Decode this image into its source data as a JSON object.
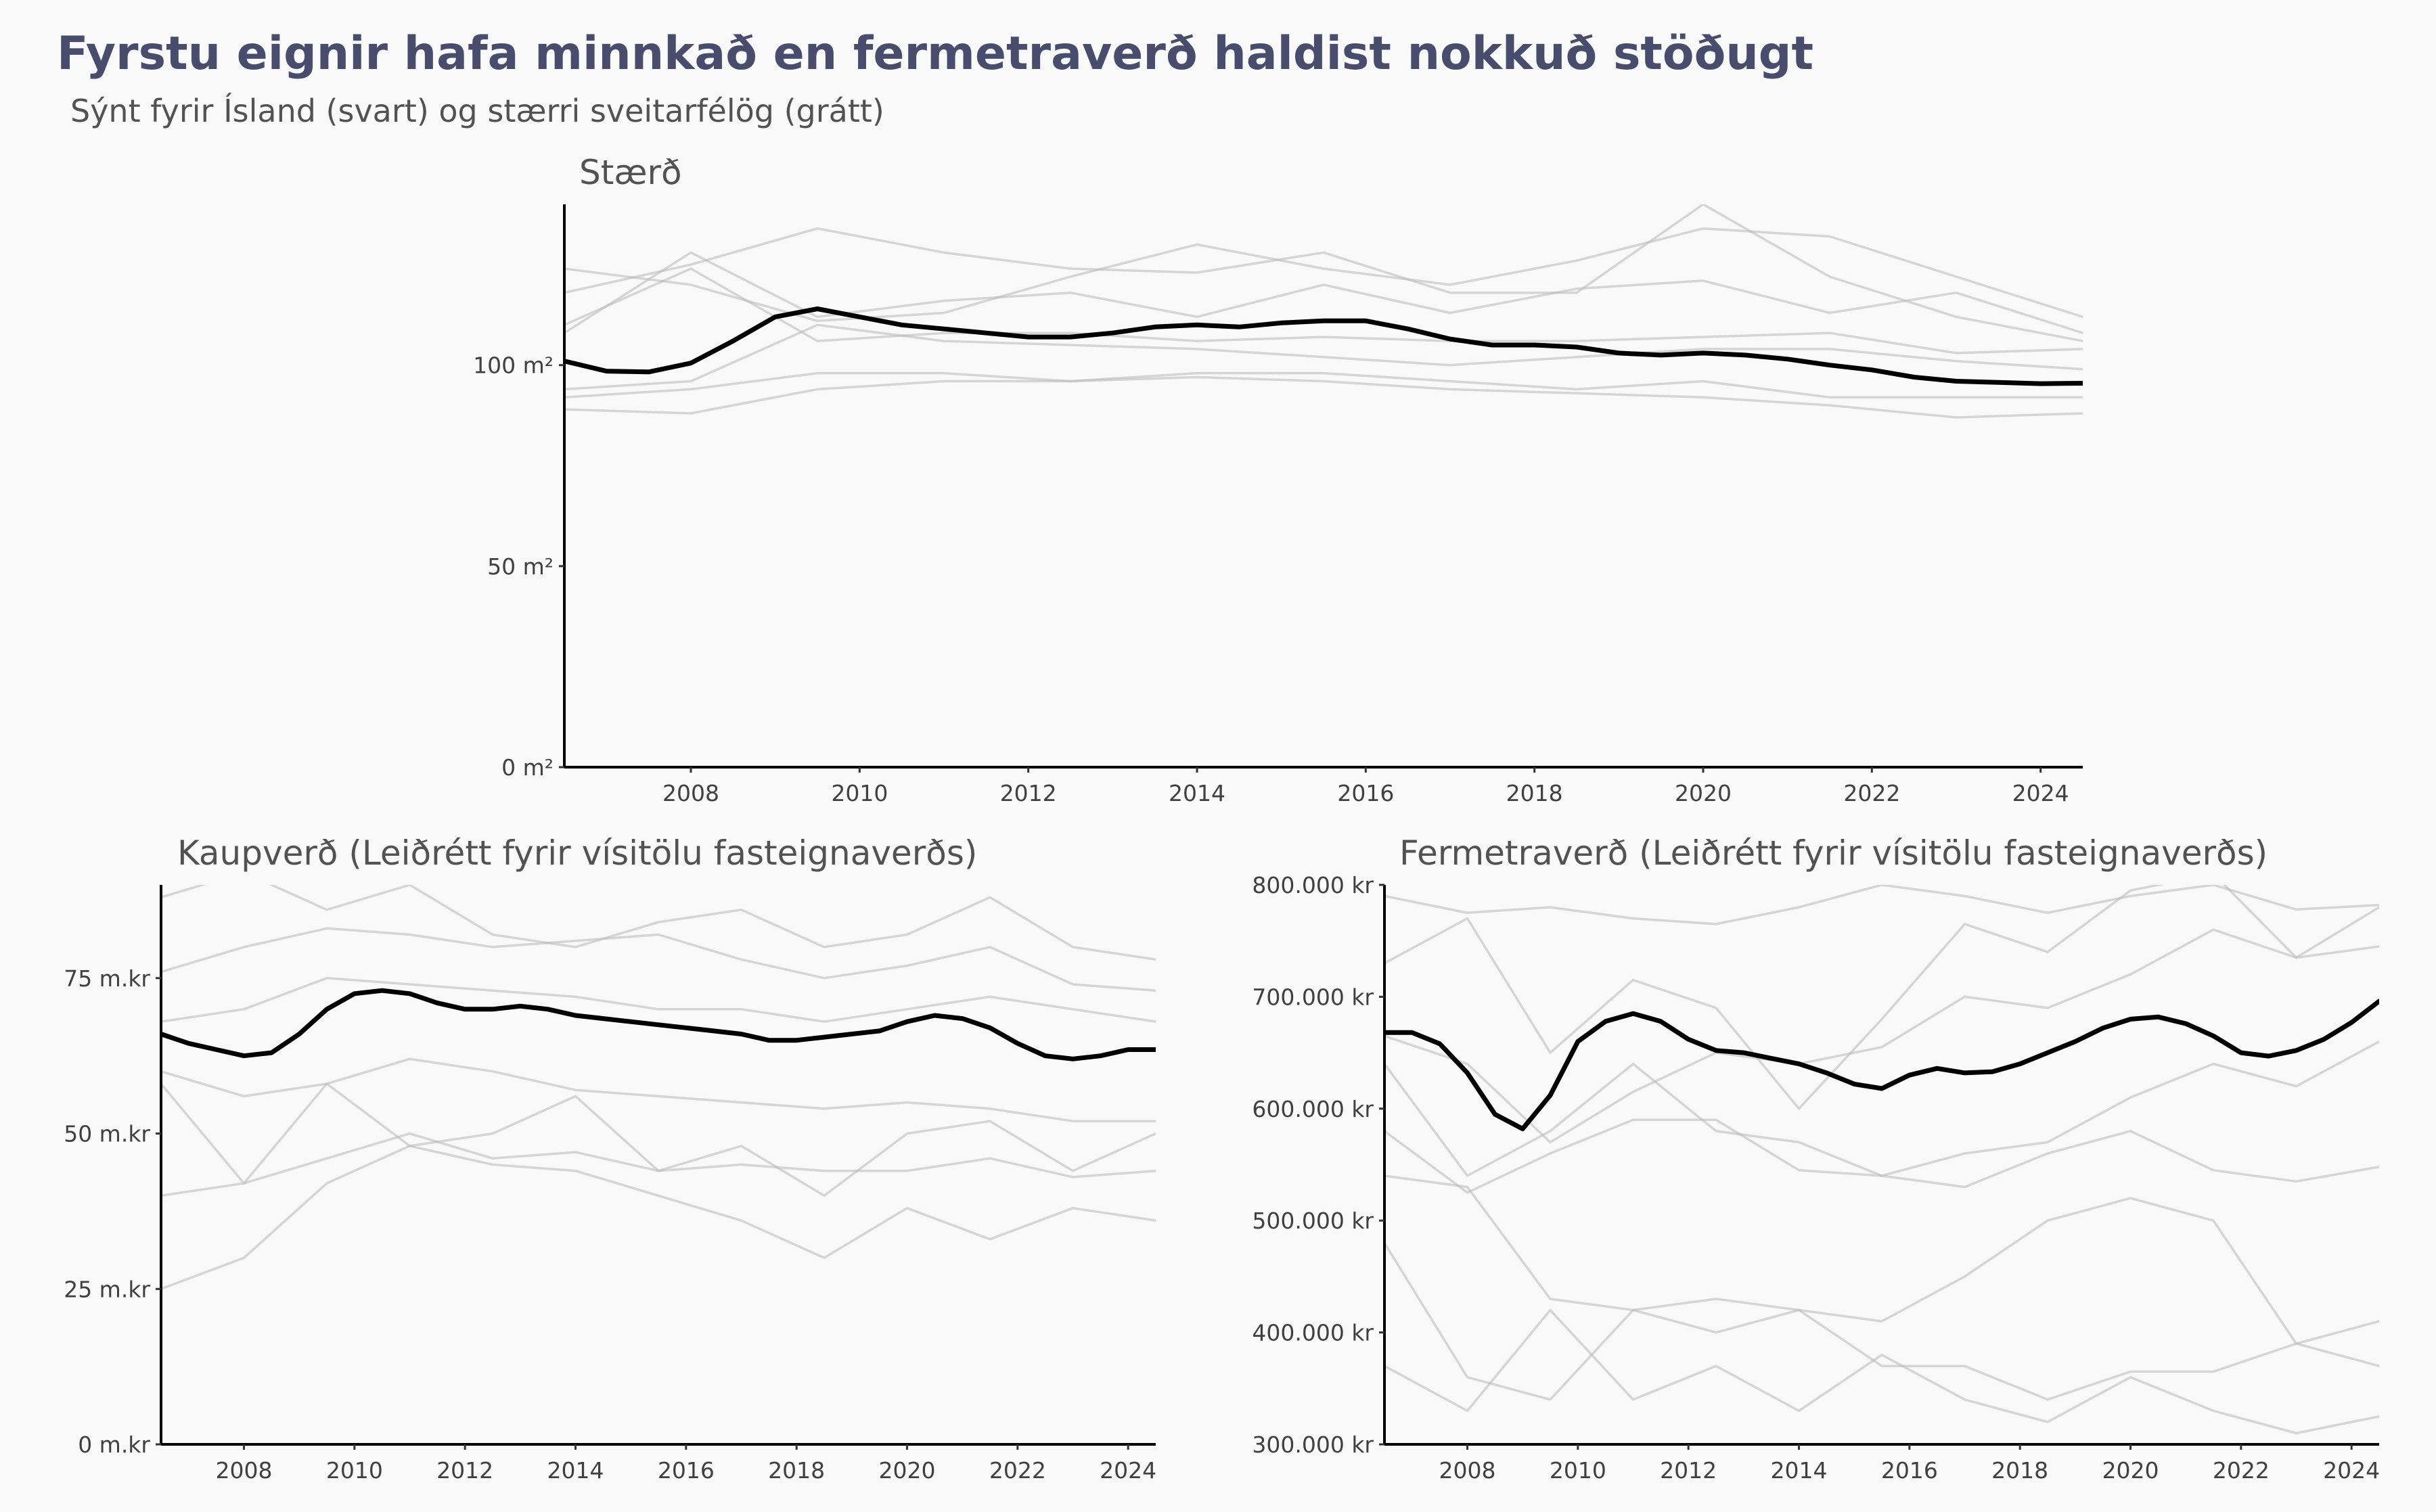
{
  "title": "Fyrstu eignir hafa minnkað en fermetraverð haldist nokkuð stöðugt",
  "subtitle": "Sýnt fyrir Ísland (svart) og stærri sveitarfélög (grátt)",
  "colors": {
    "title": "#484d6d",
    "main_series": "#000000",
    "context_series": "#bdbdbd",
    "background": "#f9f9f9"
  },
  "chart_data": [
    {
      "type": "line",
      "title": "Stærð",
      "xlim": [
        2006.5,
        2024.5
      ],
      "ylim": [
        0,
        140
      ],
      "y_ticks": [
        {
          "value": 100,
          "label": "100 m²"
        },
        {
          "value": 50,
          "label": "50 m²"
        },
        {
          "value": 0,
          "label": "0 m²"
        }
      ],
      "x_ticks": [
        "2008",
        "2010",
        "2012",
        "2014",
        "2016",
        "2018",
        "2020",
        "2022",
        "2024"
      ],
      "series": [
        {
          "role": "main",
          "x": [
            2006.5,
            2007,
            2007.5,
            2008,
            2008.5,
            2009,
            2009.5,
            2010,
            2010.5,
            2011,
            2011.5,
            2012,
            2012.5,
            2013,
            2013.5,
            2014,
            2014.5,
            2015,
            2015.5,
            2016,
            2016.5,
            2017,
            2017.5,
            2018,
            2018.5,
            2019,
            2019.5,
            2020,
            2020.5,
            2021,
            2021.5,
            2022,
            2022.5,
            2023,
            2023.5,
            2024,
            2024.5
          ],
          "y": [
            101,
            98.5,
            98.3,
            100.5,
            106,
            112,
            114,
            112,
            110,
            109,
            108,
            107,
            107,
            108,
            109.5,
            110,
            109.5,
            110.5,
            111,
            111,
            109,
            106.5,
            105,
            105,
            104.5,
            103,
            102.5,
            103,
            102.5,
            101.5,
            100,
            98.8,
            97,
            96,
            95.7,
            95.4,
            95.5
          ]
        },
        {
          "role": "context",
          "x": [
            2006.5,
            2008,
            2009.5,
            2011,
            2012.5,
            2014,
            2015.5,
            2017,
            2018.5,
            2020,
            2021.5,
            2023,
            2024.5
          ],
          "y": [
            118,
            125,
            134,
            128,
            124,
            123,
            128,
            118,
            118,
            140,
            122,
            112,
            106
          ]
        },
        {
          "role": "context",
          "x": [
            2006.5,
            2008,
            2009.5,
            2011,
            2012.5,
            2014,
            2015.5,
            2017,
            2018.5,
            2020,
            2021.5,
            2023,
            2024.5
          ],
          "y": [
            124,
            120,
            111,
            113,
            122,
            130,
            124,
            120,
            126,
            134,
            132,
            122,
            112
          ]
        },
        {
          "role": "context",
          "x": [
            2006.5,
            2008,
            2009.5,
            2011,
            2012.5,
            2014,
            2015.5,
            2017,
            2018.5,
            2020,
            2021.5,
            2023,
            2024.5
          ],
          "y": [
            108,
            128,
            112,
            116,
            118,
            112,
            120,
            113,
            119,
            121,
            113,
            118,
            108
          ]
        },
        {
          "role": "context",
          "x": [
            2006.5,
            2008,
            2009.5,
            2011,
            2012.5,
            2014,
            2015.5,
            2017,
            2018.5,
            2020,
            2021.5,
            2023,
            2024.5
          ],
          "y": [
            110,
            124,
            106,
            108,
            108,
            106,
            107,
            106,
            106,
            107,
            108,
            103,
            104
          ]
        },
        {
          "role": "context",
          "x": [
            2006.5,
            2008,
            2009.5,
            2011,
            2012.5,
            2014,
            2015.5,
            2017,
            2018.5,
            2020,
            2021.5,
            2023,
            2024.5
          ],
          "y": [
            94,
            96,
            110,
            106,
            105,
            104,
            102,
            100,
            102,
            104,
            104,
            101,
            99
          ]
        },
        {
          "role": "context",
          "x": [
            2006.5,
            2008,
            2009.5,
            2011,
            2012.5,
            2014,
            2015.5,
            2017,
            2018.5,
            2020,
            2021.5,
            2023,
            2024.5
          ],
          "y": [
            92,
            94,
            98,
            98,
            96,
            98,
            98,
            96,
            94,
            96,
            92,
            92,
            92
          ]
        },
        {
          "role": "context",
          "x": [
            2006.5,
            2008,
            2009.5,
            2011,
            2012.5,
            2014,
            2015.5,
            2017,
            2018.5,
            2020,
            2021.5,
            2023,
            2024.5
          ],
          "y": [
            89,
            88,
            94,
            96,
            96,
            97,
            96,
            94,
            93,
            92,
            90,
            87,
            88
          ]
        }
      ]
    },
    {
      "type": "line",
      "title": "Kaupverð (Leiðrétt fyrir vísitölu fasteignaverðs)",
      "xlim": [
        2006.5,
        2024.5
      ],
      "ylim": [
        0,
        90
      ],
      "y_ticks": [
        {
          "value": 75,
          "label": "75 m.kr"
        },
        {
          "value": 50,
          "label": "50 m.kr"
        },
        {
          "value": 25,
          "label": "25 m.kr"
        },
        {
          "value": 0,
          "label": "0 m.kr"
        }
      ],
      "x_ticks": [
        "2008",
        "2010",
        "2012",
        "2014",
        "2016",
        "2018",
        "2020",
        "2022",
        "2024"
      ],
      "series": [
        {
          "role": "main",
          "x": [
            2006.5,
            2007,
            2007.5,
            2008,
            2008.5,
            2009,
            2009.5,
            2010,
            2010.5,
            2011,
            2011.5,
            2012,
            2012.5,
            2013,
            2013.5,
            2014,
            2014.5,
            2015,
            2015.5,
            2016,
            2016.5,
            2017,
            2017.5,
            2018,
            2018.5,
            2019,
            2019.5,
            2020,
            2020.5,
            2021,
            2021.5,
            2022,
            2022.5,
            2023,
            2023.5,
            2024,
            2024.5
          ],
          "y": [
            66,
            64.5,
            63.5,
            62.5,
            63,
            66,
            70,
            72.5,
            73,
            72.5,
            71,
            70,
            70,
            70.5,
            70,
            69,
            68.5,
            68,
            67.5,
            67,
            66.5,
            66,
            65,
            65,
            65.5,
            66,
            66.5,
            68,
            69,
            68.5,
            67,
            64.5,
            62.5,
            62,
            62.5,
            63.5,
            63.5
          ]
        },
        {
          "role": "context",
          "x": [
            2006.5,
            2008,
            2009.5,
            2011,
            2012.5,
            2014,
            2015.5,
            2017,
            2018.5,
            2020,
            2021.5,
            2023,
            2024.5
          ],
          "y": [
            88,
            92,
            86,
            90,
            82,
            80,
            84,
            86,
            80,
            82,
            88,
            80,
            78
          ]
        },
        {
          "role": "context",
          "x": [
            2006.5,
            2008,
            2009.5,
            2011,
            2012.5,
            2014,
            2015.5,
            2017,
            2018.5,
            2020,
            2021.5,
            2023,
            2024.5
          ],
          "y": [
            76,
            80,
            83,
            82,
            80,
            81,
            82,
            78,
            75,
            77,
            80,
            74,
            73
          ]
        },
        {
          "role": "context",
          "x": [
            2006.5,
            2008,
            2009.5,
            2011,
            2012.5,
            2014,
            2015.5,
            2017,
            2018.5,
            2020,
            2021.5,
            2023,
            2024.5
          ],
          "y": [
            68,
            70,
            75,
            74,
            73,
            72,
            70,
            70,
            68,
            70,
            72,
            70,
            68
          ]
        },
        {
          "role": "context",
          "x": [
            2006.5,
            2008,
            2009.5,
            2011,
            2012.5,
            2014,
            2015.5,
            2017,
            2018.5,
            2020,
            2021.5,
            2023,
            2024.5
          ],
          "y": [
            60,
            56,
            58,
            62,
            60,
            57,
            56,
            55,
            54,
            55,
            54,
            52,
            52
          ]
        },
        {
          "role": "context",
          "x": [
            2006.5,
            2008,
            2009.5,
            2011,
            2012.5,
            2014,
            2015.5,
            2017,
            2018.5,
            2020,
            2021.5,
            2023,
            2024.5
          ],
          "y": [
            58,
            42,
            58,
            48,
            50,
            56,
            44,
            48,
            40,
            50,
            52,
            44,
            50
          ]
        },
        {
          "role": "context",
          "x": [
            2006.5,
            2008,
            2009.5,
            2011,
            2012.5,
            2014,
            2015.5,
            2017,
            2018.5,
            2020,
            2021.5,
            2023,
            2024.5
          ],
          "y": [
            40,
            42,
            46,
            50,
            46,
            47,
            44,
            45,
            44,
            44,
            46,
            43,
            44
          ]
        },
        {
          "role": "context",
          "x": [
            2006.5,
            2008,
            2009.5,
            2011,
            2012.5,
            2014,
            2015.5,
            2017,
            2018.5,
            2020,
            2021.5,
            2023,
            2024.5
          ],
          "y": [
            25,
            30,
            42,
            48,
            45,
            44,
            40,
            36,
            30,
            38,
            33,
            38,
            36
          ]
        }
      ]
    },
    {
      "type": "line",
      "title": "Fermetraverð (Leiðrétt fyrir vísitölu fasteignaverðs)",
      "xlim": [
        2006.5,
        2024.5
      ],
      "ylim": [
        300000,
        800000
      ],
      "y_ticks": [
        {
          "value": 800000,
          "label": "800.000 kr"
        },
        {
          "value": 700000,
          "label": "700.000 kr"
        },
        {
          "value": 600000,
          "label": "600.000 kr"
        },
        {
          "value": 500000,
          "label": "500.000 kr"
        },
        {
          "value": 400000,
          "label": "400.000 kr"
        },
        {
          "value": 300000,
          "label": "300.000 kr"
        }
      ],
      "x_ticks": [
        "2008",
        "2010",
        "2012",
        "2014",
        "2016",
        "2018",
        "2020",
        "2022",
        "2024"
      ],
      "series": [
        {
          "role": "main",
          "x": [
            2006.5,
            2007,
            2007.5,
            2008,
            2008.5,
            2009,
            2009.5,
            2010,
            2010.5,
            2011,
            2011.5,
            2012,
            2012.5,
            2013,
            2013.5,
            2014,
            2014.5,
            2015,
            2015.5,
            2016,
            2016.5,
            2017,
            2017.5,
            2018,
            2018.5,
            2019,
            2019.5,
            2020,
            2020.5,
            2021,
            2021.5,
            2022,
            2022.5,
            2023,
            2023.5,
            2024,
            2024.5
          ],
          "y": [
            668000,
            668000,
            658000,
            632000,
            595000,
            582000,
            612000,
            660000,
            678000,
            685000,
            678000,
            662000,
            652000,
            650000,
            645000,
            640000,
            632000,
            622000,
            618000,
            630000,
            636000,
            632000,
            633000,
            640000,
            650000,
            660000,
            672000,
            680000,
            682000,
            676000,
            665000,
            650000,
            647000,
            652000,
            662000,
            677000,
            696000
          ]
        },
        {
          "role": "context",
          "x": [
            2006.5,
            2008,
            2009.5,
            2011,
            2012.5,
            2014,
            2015.5,
            2017,
            2018.5,
            2020,
            2021.5,
            2023,
            2024.5
          ],
          "y": [
            790000,
            775000,
            780000,
            770000,
            765000,
            780000,
            800000,
            790000,
            775000,
            790000,
            800000,
            778000,
            782000
          ]
        },
        {
          "role": "context",
          "x": [
            2006.5,
            2008,
            2009.5,
            2011,
            2012.5,
            2014,
            2015.5,
            2017,
            2018.5,
            2020,
            2021.5,
            2023,
            2024.5
          ],
          "y": [
            730000,
            770000,
            650000,
            715000,
            690000,
            600000,
            680000,
            765000,
            740000,
            795000,
            810000,
            735000,
            780000
          ]
        },
        {
          "role": "context",
          "x": [
            2006.5,
            2008,
            2009.5,
            2011,
            2012.5,
            2014,
            2015.5,
            2017,
            2018.5,
            2020,
            2021.5,
            2023,
            2024.5
          ],
          "y": [
            665000,
            640000,
            570000,
            615000,
            650000,
            640000,
            655000,
            700000,
            690000,
            720000,
            760000,
            735000,
            745000
          ]
        },
        {
          "role": "context",
          "x": [
            2006.5,
            2008,
            2009.5,
            2011,
            2012.5,
            2014,
            2015.5,
            2017,
            2018.5,
            2020,
            2021.5,
            2023,
            2024.5
          ],
          "y": [
            640000,
            540000,
            580000,
            640000,
            580000,
            570000,
            540000,
            560000,
            570000,
            610000,
            640000,
            620000,
            660000
          ]
        },
        {
          "role": "context",
          "x": [
            2006.5,
            2008,
            2009.5,
            2011,
            2012.5,
            2014,
            2015.5,
            2017,
            2018.5,
            2020,
            2021.5,
            2023,
            2024.5
          ],
          "y": [
            580000,
            525000,
            560000,
            590000,
            590000,
            545000,
            540000,
            530000,
            560000,
            580000,
            545000,
            535000,
            548000
          ]
        },
        {
          "role": "context",
          "x": [
            2006.5,
            2008,
            2009.5,
            2011,
            2012.5,
            2014,
            2015.5,
            2017,
            2018.5,
            2020,
            2021.5,
            2023,
            2024.5
          ],
          "y": [
            540000,
            530000,
            430000,
            420000,
            400000,
            420000,
            370000,
            370000,
            340000,
            365000,
            365000,
            390000,
            410000
          ]
        },
        {
          "role": "context",
          "x": [
            2006.5,
            2008,
            2009.5,
            2011,
            2012.5,
            2014,
            2015.5,
            2017,
            2018.5,
            2020,
            2021.5,
            2023,
            2024.5
          ],
          "y": [
            480000,
            360000,
            340000,
            420000,
            430000,
            420000,
            410000,
            450000,
            500000,
            520000,
            500000,
            390000,
            370000
          ]
        },
        {
          "role": "context",
          "x": [
            2006.5,
            2008,
            2009.5,
            2011,
            2012.5,
            2014,
            2015.5,
            2017,
            2018.5,
            2020,
            2021.5,
            2023,
            2024.5
          ],
          "y": [
            370000,
            330000,
            420000,
            340000,
            370000,
            330000,
            380000,
            340000,
            320000,
            360000,
            330000,
            310000,
            325000
          ]
        }
      ]
    }
  ]
}
